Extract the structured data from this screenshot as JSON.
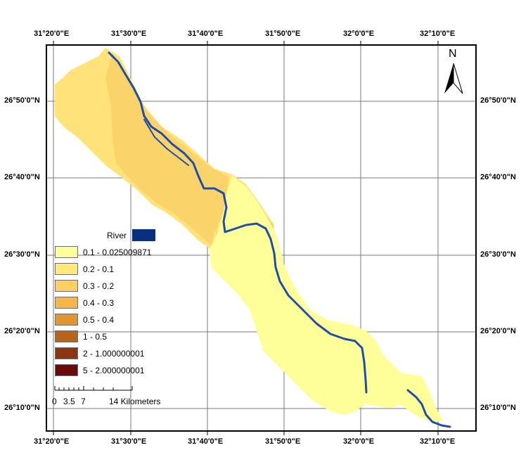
{
  "map": {
    "top_labels": [
      "31°20'0\"E",
      "31°30'0\"E",
      "31°40'0\"E",
      "31°50'0\"E",
      "32°0'0\"E",
      "32°10'0\"E"
    ],
    "bottom_labels": [
      "31°20'0\"E",
      "31°30'0\"E",
      "31°40'0\"E",
      "31°50'0\"E",
      "32°0'0\"E",
      "32°10'0\"E"
    ],
    "left_labels": [
      "26°50'0\"N",
      "26°40'0\"N",
      "26°30'0\"N",
      "26°20'0\"N",
      "26°10'0\"N"
    ],
    "right_labels": [
      "26°50'0\"N",
      "26°40'0\"N",
      "26°30'0\"N",
      "26°20'0\"N",
      "26°10'0\"N"
    ],
    "north_arrow": {
      "label": "N",
      "icon": "north-arrow-icon"
    },
    "colors": {
      "river": "#1f4ea8",
      "frame": "#000000",
      "grid": "#7a7a7a"
    }
  },
  "legend": {
    "river": {
      "label": "River",
      "color": "#0a2f7c"
    },
    "classes": [
      {
        "label": "0.1 - 0.025009871",
        "color": "#ffff99"
      },
      {
        "label": "0.2 - 0.1",
        "color": "#ffe87a"
      },
      {
        "label": "0.3 - 0.2",
        "color": "#fcd061"
      },
      {
        "label": "0.4 - 0.3",
        "color": "#f4b748"
      },
      {
        "label": "0.5 - 0.4",
        "color": "#e0962f"
      },
      {
        "label": "1 - 0.5",
        "color": "#b8651c"
      },
      {
        "label": "2 - 1.000000001",
        "color": "#8c3512"
      },
      {
        "label": "5 - 2.000000001",
        "color": "#6b0a0a"
      }
    ]
  },
  "scalebar": {
    "labels": [
      "0",
      "3.5",
      "7",
      "14 Kilometers"
    ]
  }
}
